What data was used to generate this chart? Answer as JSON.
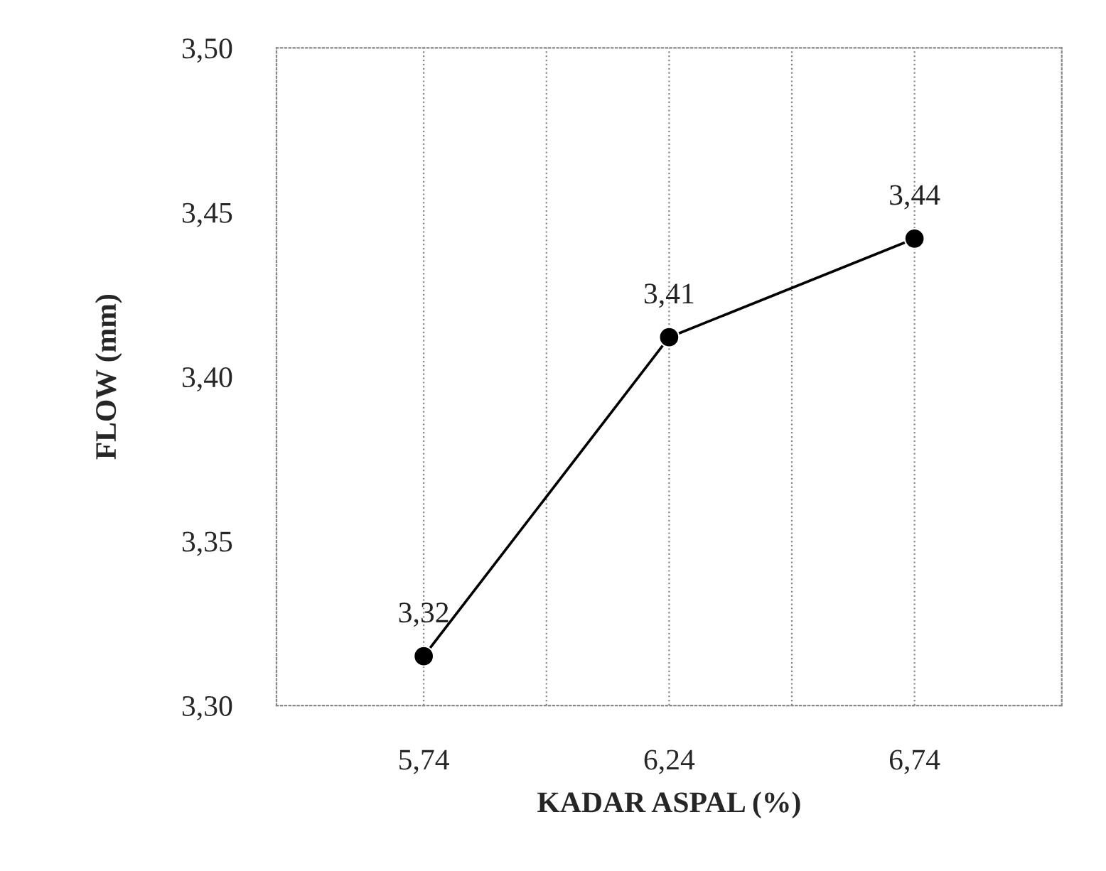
{
  "chart_data": {
    "type": "line",
    "xlabel": "KADAR ASPAL (%)",
    "ylabel": "FLOW (mm)",
    "categories": [
      "5,74",
      "6,24",
      "6,74"
    ],
    "series": [
      {
        "color": "#000000",
        "values": [
          3.315,
          3.412,
          3.442
        ],
        "value_labels": [
          "3,32",
          "3,41",
          "3,44"
        ]
      }
    ],
    "ylim": [
      3.3,
      3.5
    ],
    "yticks": [
      {
        "value": 3.3,
        "label": "3,30"
      },
      {
        "value": 3.35,
        "label": "3,35"
      },
      {
        "value": 3.4,
        "label": "3,40"
      },
      {
        "value": 3.45,
        "label": "3,45"
      },
      {
        "value": 3.5,
        "label": "3,50"
      }
    ],
    "grid": "x",
    "marker": "circle",
    "line_style": "solid",
    "legend": false
  }
}
